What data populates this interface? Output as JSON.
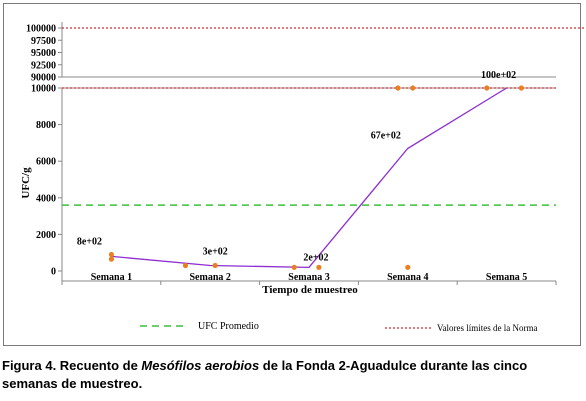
{
  "chart_data": {
    "type": "line",
    "xlabel": "Tiempo de muestreo",
    "ylabel": "UFC/g",
    "categories": [
      "Semana 1",
      "Semana 2",
      "Semana 3",
      "Semana 4",
      "Semana 5"
    ],
    "series": [
      {
        "name": "",
        "color": "#8e2ed0",
        "values": [
          800,
          300,
          200,
          6700,
          10000
        ],
        "labels": [
          "8e+02",
          "3e+02",
          "2e+02",
          "67e+02",
          "100e+02"
        ]
      }
    ],
    "replicate_points": {
      "color": "#e87f23",
      "points": [
        {
          "category_index": 0,
          "offset": 0,
          "y": 900
        },
        {
          "category_index": 0,
          "offset": 0,
          "y": 650
        },
        {
          "category_index": 1,
          "offset": -0.25,
          "y": 300
        },
        {
          "category_index": 1,
          "offset": 0.05,
          "y": 300
        },
        {
          "category_index": 2,
          "offset": -0.15,
          "y": 200
        },
        {
          "category_index": 2,
          "offset": 0.1,
          "y": 200
        },
        {
          "category_index": 3,
          "offset": -0.1,
          "y": 10000
        },
        {
          "category_index": 3,
          "offset": 0.05,
          "y": 10000
        },
        {
          "category_index": 3,
          "offset": 0,
          "y": 200
        },
        {
          "category_index": 4,
          "offset": -0.2,
          "y": 10000
        },
        {
          "category_index": 4,
          "offset": 0.15,
          "y": 10000
        }
      ]
    },
    "reference_lines": [
      {
        "name": "UFC Promedio",
        "y": 3600,
        "style": "dashed",
        "color": "#3cbf3c"
      },
      {
        "name": "Valores límites de la Norma",
        "y": 10000,
        "style": "dotted",
        "color": "#d02c2c"
      },
      {
        "name": "Valores límites de la Norma",
        "y": 100000,
        "style": "dotted",
        "color": "#d02c2c"
      }
    ],
    "axis_break": true,
    "lower_axis": {
      "ylim": [
        0,
        10000
      ],
      "ticks": [
        "0",
        "2000",
        "4000",
        "6000",
        "8000",
        "10000"
      ]
    },
    "upper_axis": {
      "ylim": [
        90000,
        100000
      ],
      "ticks": [
        "90000",
        "92500",
        "95000",
        "97500",
        "100000"
      ]
    }
  },
  "legend": {
    "left_label": "UFC Promedio",
    "right_label": "Valores límites de la Norma"
  },
  "caption": {
    "prefix": "Figura 4. Recuento de ",
    "italic": "Mesófilos aerobios",
    "suffix": " de la Fonda 2-Aguadulce durante las cinco semanas de muestreo."
  }
}
